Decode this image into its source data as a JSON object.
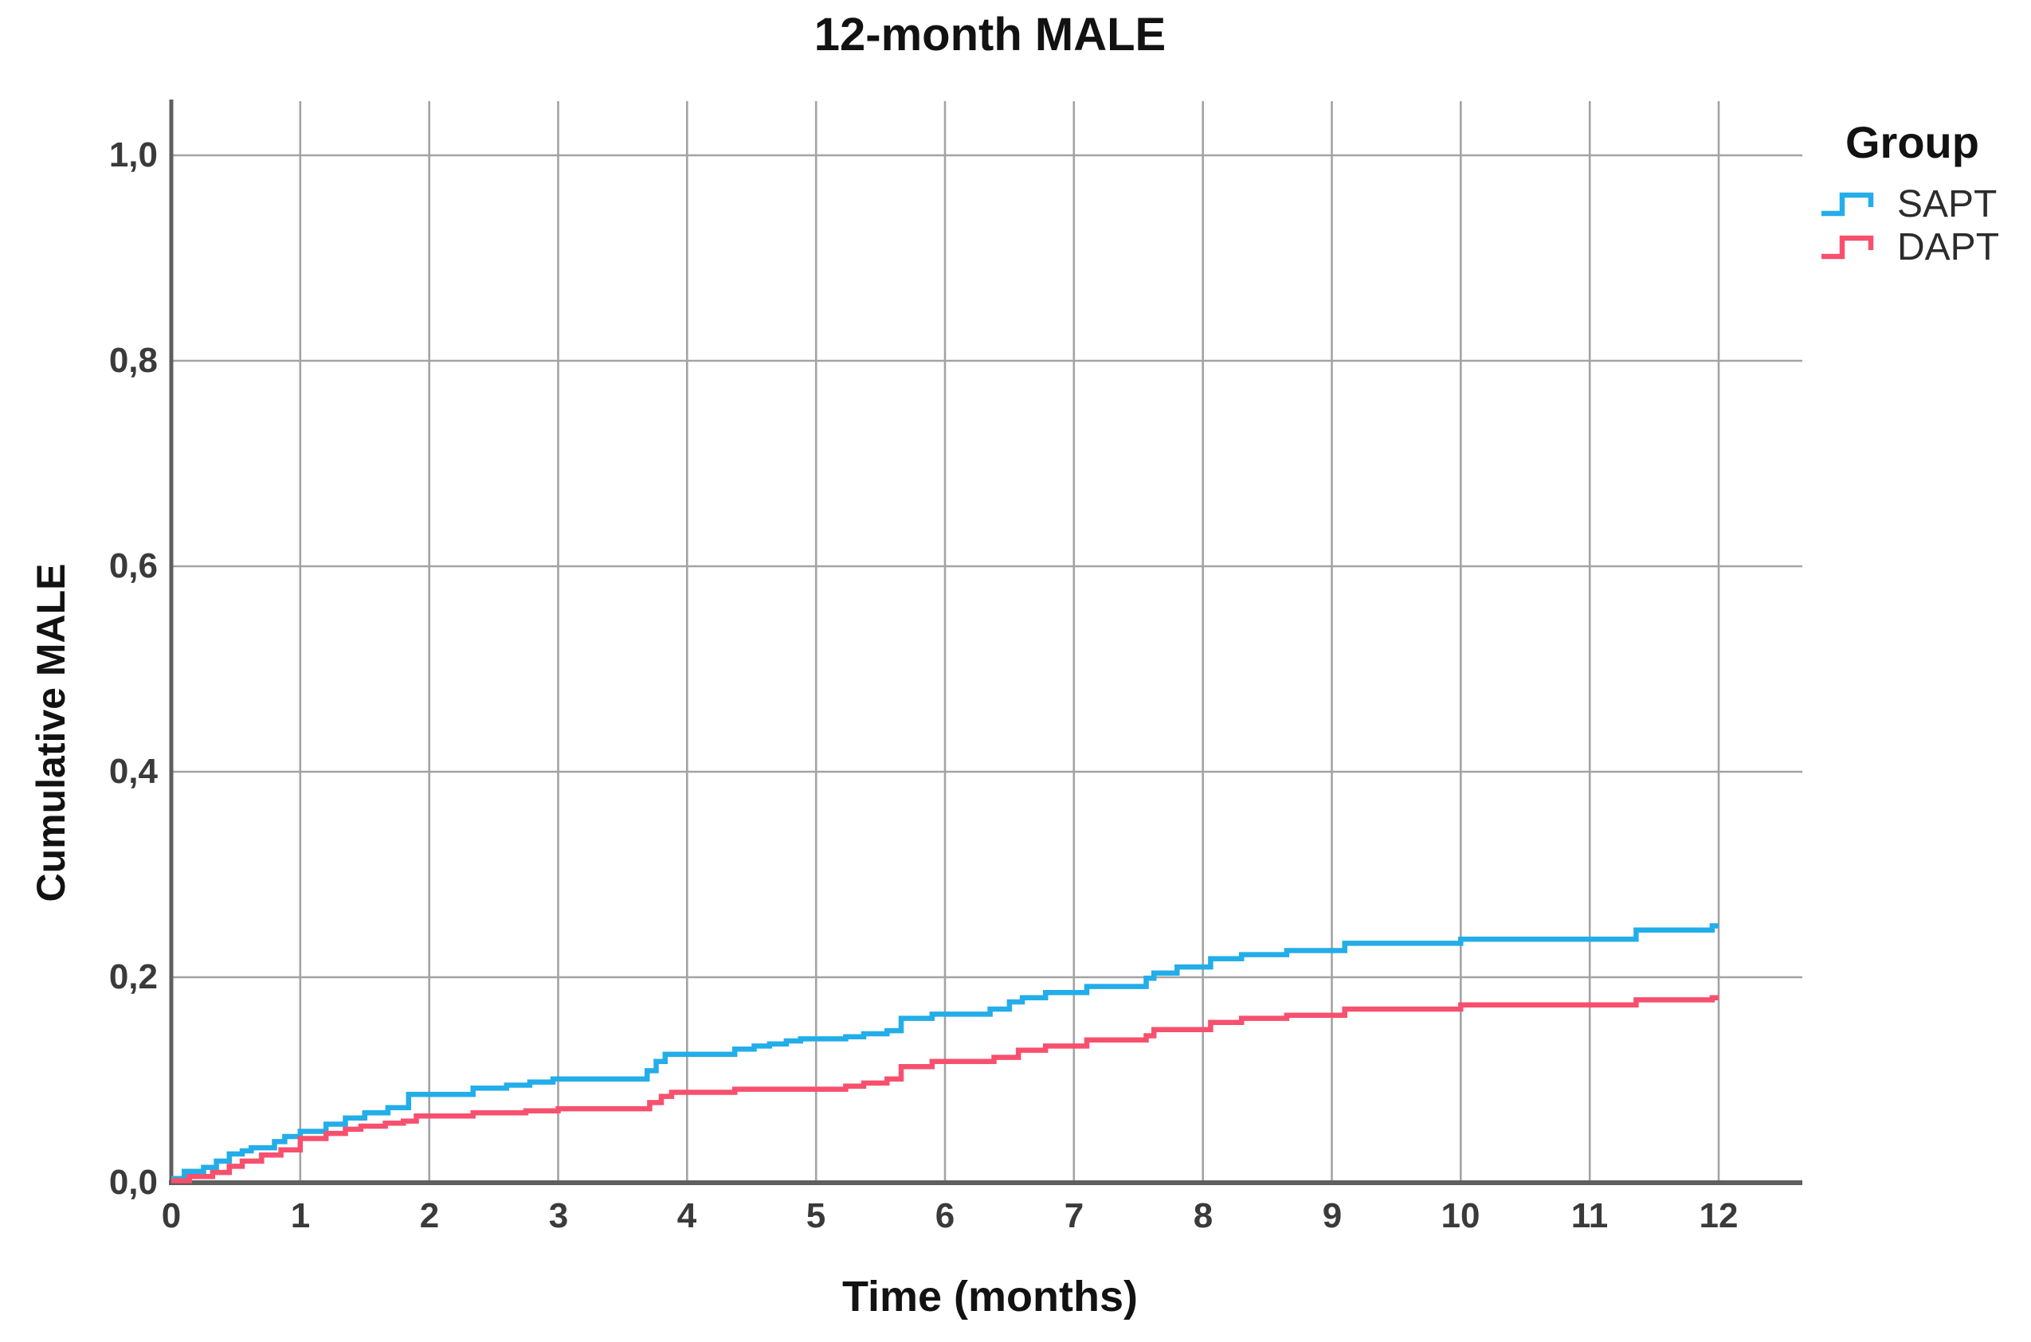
{
  "title": "12-month MALE",
  "colors": {
    "sapt": "#23ADE9",
    "dapt": "#F7506E",
    "grid": "#A3A3A3",
    "axis": "#5F5F5F",
    "tick_text": "#3A3A3A",
    "text": "#121212"
  },
  "legend": {
    "title": "Group",
    "entries": [
      {
        "label": "SAPT",
        "series": "sapt"
      },
      {
        "label": "DAPT",
        "series": "dapt"
      }
    ]
  },
  "chart_data": {
    "type": "line",
    "subtype": "step-cumulative-incidence",
    "title": "12-month MALE",
    "xlabel": "Time (months)",
    "ylabel": "Cumulative MALE",
    "xlim": [
      0,
      12.65
    ],
    "ylim": [
      0,
      1.05
    ],
    "grid": true,
    "legend_position": "top-right-outside",
    "x_ticks": {
      "values": [
        0,
        1,
        2,
        3,
        4,
        5,
        6,
        7,
        8,
        9,
        10,
        11,
        12
      ],
      "labels": [
        "0",
        "1",
        "2",
        "3",
        "4",
        "5",
        "6",
        "7",
        "8",
        "9",
        "10",
        "11",
        "12"
      ]
    },
    "y_ticks": {
      "values": [
        0.0,
        0.2,
        0.4,
        0.6,
        0.8,
        1.0
      ],
      "labels": [
        "0,0",
        "0,2",
        "0,4",
        "0,6",
        "0,8",
        "1,0"
      ]
    },
    "series": [
      {
        "name": "SAPT",
        "color_key": "sapt",
        "step_points": [
          [
            0,
            0.004
          ],
          [
            0.1,
            0.011
          ],
          [
            0.25,
            0.015
          ],
          [
            0.35,
            0.021
          ],
          [
            0.45,
            0.028
          ],
          [
            0.55,
            0.031
          ],
          [
            0.62,
            0.034
          ],
          [
            0.8,
            0.04
          ],
          [
            0.88,
            0.045
          ],
          [
            1.0,
            0.05
          ],
          [
            1.2,
            0.057
          ],
          [
            1.35,
            0.063
          ],
          [
            1.5,
            0.068
          ],
          [
            1.68,
            0.073
          ],
          [
            1.84,
            0.086
          ],
          [
            2.34,
            0.092
          ],
          [
            2.6,
            0.095
          ],
          [
            2.78,
            0.098
          ],
          [
            2.96,
            0.101
          ],
          [
            3.69,
            0.109
          ],
          [
            3.76,
            0.118
          ],
          [
            3.83,
            0.125
          ],
          [
            4.37,
            0.13
          ],
          [
            4.52,
            0.133
          ],
          [
            4.64,
            0.135
          ],
          [
            4.77,
            0.138
          ],
          [
            4.88,
            0.14
          ],
          [
            5.23,
            0.142
          ],
          [
            5.37,
            0.145
          ],
          [
            5.55,
            0.148
          ],
          [
            5.66,
            0.16
          ],
          [
            5.9,
            0.164
          ],
          [
            6.35,
            0.169
          ],
          [
            6.5,
            0.176
          ],
          [
            6.6,
            0.18
          ],
          [
            6.78,
            0.185
          ],
          [
            7.1,
            0.191
          ],
          [
            7.56,
            0.199
          ],
          [
            7.62,
            0.204
          ],
          [
            7.8,
            0.21
          ],
          [
            8.06,
            0.218
          ],
          [
            8.3,
            0.222
          ],
          [
            8.65,
            0.226
          ],
          [
            9.1,
            0.233
          ],
          [
            10.0,
            0.237
          ],
          [
            11.36,
            0.246
          ],
          [
            11.95,
            0.25
          ],
          [
            12.0,
            0.25
          ]
        ]
      },
      {
        "name": "DAPT",
        "color_key": "dapt",
        "step_points": [
          [
            0,
            0.002
          ],
          [
            0.14,
            0.006
          ],
          [
            0.32,
            0.01
          ],
          [
            0.45,
            0.016
          ],
          [
            0.55,
            0.021
          ],
          [
            0.7,
            0.027
          ],
          [
            0.85,
            0.032
          ],
          [
            1.0,
            0.043
          ],
          [
            1.2,
            0.048
          ],
          [
            1.35,
            0.052
          ],
          [
            1.47,
            0.055
          ],
          [
            1.66,
            0.058
          ],
          [
            1.8,
            0.06
          ],
          [
            1.9,
            0.065
          ],
          [
            2.34,
            0.068
          ],
          [
            2.75,
            0.07
          ],
          [
            3.0,
            0.072
          ],
          [
            3.71,
            0.078
          ],
          [
            3.8,
            0.084
          ],
          [
            3.88,
            0.088
          ],
          [
            4.37,
            0.091
          ],
          [
            5.23,
            0.094
          ],
          [
            5.37,
            0.097
          ],
          [
            5.55,
            0.101
          ],
          [
            5.66,
            0.113
          ],
          [
            5.9,
            0.118
          ],
          [
            6.38,
            0.122
          ],
          [
            6.57,
            0.129
          ],
          [
            6.78,
            0.133
          ],
          [
            7.1,
            0.139
          ],
          [
            7.56,
            0.143
          ],
          [
            7.62,
            0.149
          ],
          [
            8.06,
            0.156
          ],
          [
            8.3,
            0.16
          ],
          [
            8.65,
            0.163
          ],
          [
            9.1,
            0.169
          ],
          [
            10.0,
            0.173
          ],
          [
            11.36,
            0.178
          ],
          [
            11.95,
            0.18
          ],
          [
            12.0,
            0.18
          ]
        ]
      }
    ]
  }
}
